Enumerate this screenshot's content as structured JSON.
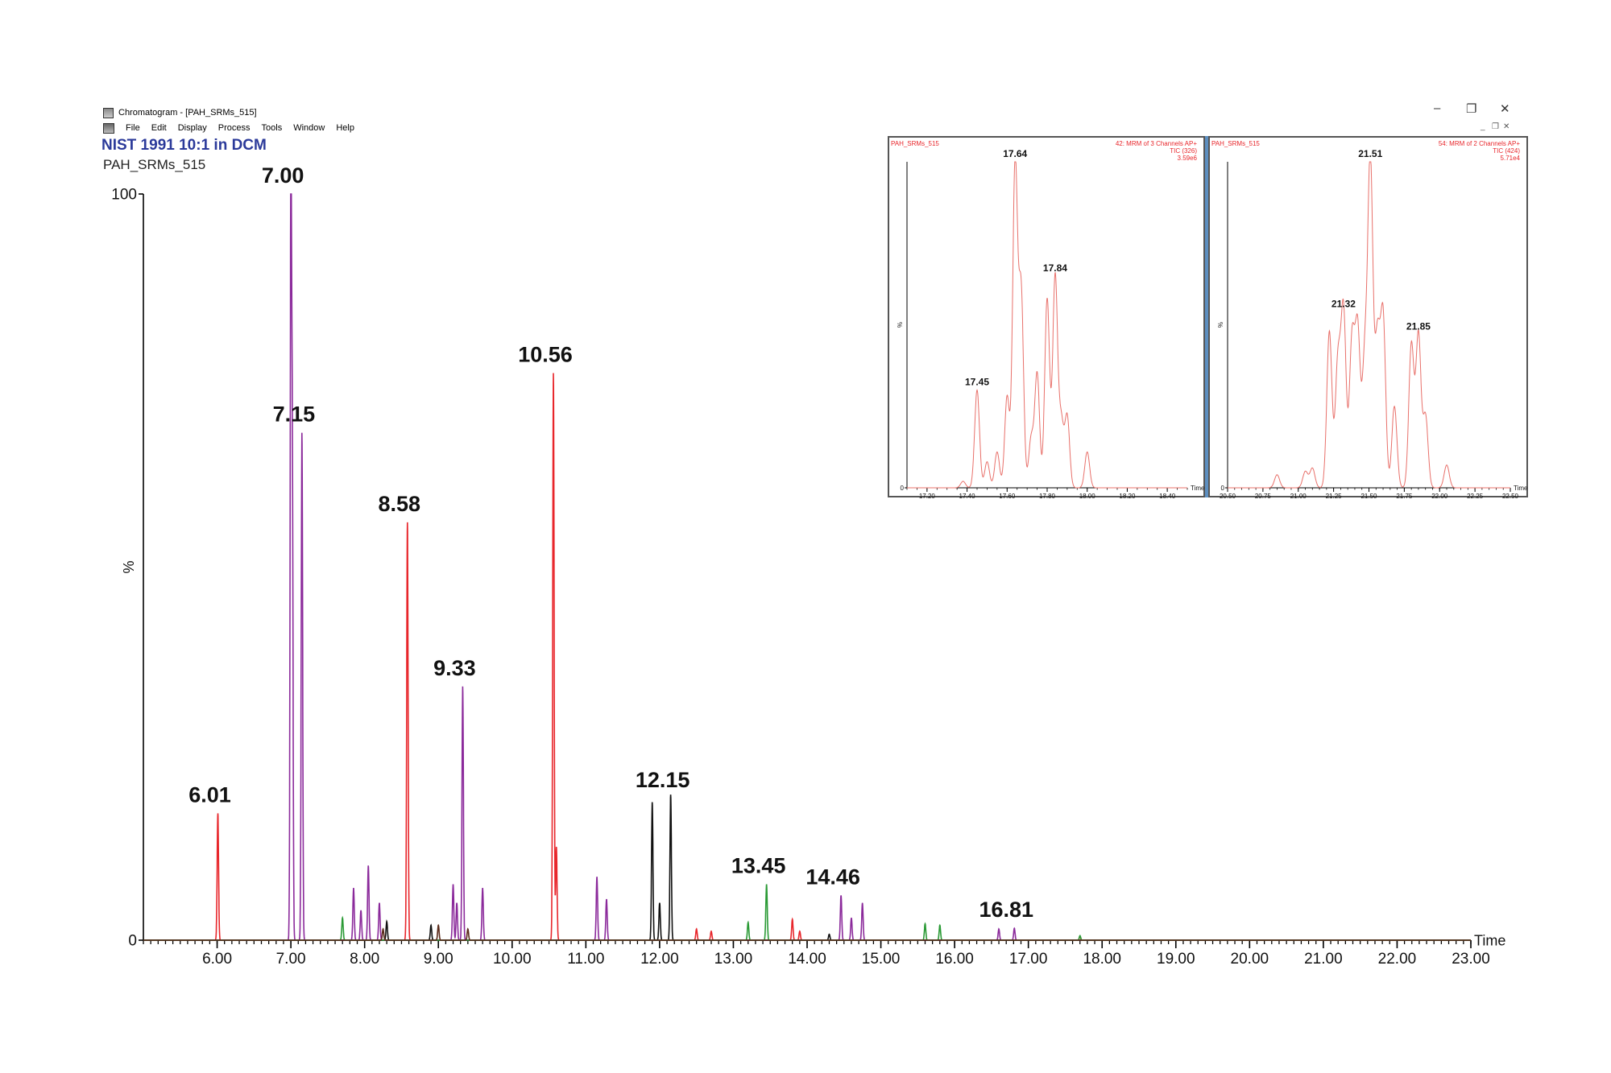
{
  "window": {
    "title": "Chromatogram - [PAH_SRMs_515]",
    "menu": [
      "File",
      "Edit",
      "Display",
      "Process",
      "Tools",
      "Window",
      "Help"
    ],
    "controls": {
      "minimize": "–",
      "restore": "❐",
      "close": "✕"
    },
    "sub_controls": {
      "minimize": "_",
      "restore": "❐",
      "close": "✕"
    }
  },
  "sample": {
    "title": "NIST 1991 10:1 in DCM",
    "name": "PAH_SRMs_515"
  },
  "colors": {
    "red": "#e8262b",
    "purple": "#8b2a9b",
    "black": "#111111",
    "green": "#2a9a35",
    "brown": "#5a2a1a",
    "inset": "#e8706a",
    "title_blue": "#2b3a9a"
  },
  "chart_data": [
    {
      "type": "line",
      "xlabel": "Time",
      "ylabel": "%",
      "xlim": [
        5.0,
        23.0
      ],
      "ylim": [
        0,
        100
      ],
      "x_ticks": [
        "6.00",
        "7.00",
        "8.00",
        "9.00",
        "10.00",
        "11.00",
        "12.00",
        "13.00",
        "14.00",
        "15.00",
        "16.00",
        "17.00",
        "18.00",
        "19.00",
        "20.00",
        "21.00",
        "22.00",
        "23.00"
      ],
      "y_ticks": [
        "0",
        "100"
      ],
      "peak_labels": [
        {
          "x": 6.01,
          "y": 17,
          "label": "6.01"
        },
        {
          "x": 7.0,
          "y": 100,
          "label": "7.00"
        },
        {
          "x": 7.15,
          "y": 68,
          "label": "7.15"
        },
        {
          "x": 8.58,
          "y": 56,
          "label": "8.58"
        },
        {
          "x": 9.33,
          "y": 34,
          "label": "9.33"
        },
        {
          "x": 10.56,
          "y": 76,
          "label": "10.56"
        },
        {
          "x": 12.15,
          "y": 19,
          "label": "12.15"
        },
        {
          "x": 13.45,
          "y": 7.5,
          "label": "13.45"
        },
        {
          "x": 14.46,
          "y": 6,
          "label": "14.46"
        },
        {
          "x": 16.81,
          "y": 1.6,
          "label": "16.81"
        }
      ],
      "series": [
        {
          "color": "red",
          "peaks": [
            [
              6.01,
              17
            ],
            [
              8.58,
              56
            ],
            [
              10.56,
              76
            ],
            [
              10.6,
              12.5
            ],
            [
              12.5,
              1.5
            ],
            [
              12.7,
              1.2
            ],
            [
              13.8,
              2.8
            ],
            [
              13.9,
              1.2
            ],
            [
              17.7,
              0.5
            ]
          ]
        },
        {
          "color": "purple",
          "peaks": [
            [
              7.0,
              100
            ],
            [
              7.02,
              60
            ],
            [
              7.15,
              68
            ],
            [
              7.85,
              7
            ],
            [
              7.95,
              4
            ],
            [
              8.05,
              10
            ],
            [
              8.2,
              5
            ],
            [
              9.2,
              7.5
            ],
            [
              9.25,
              5
            ],
            [
              9.33,
              34
            ],
            [
              9.6,
              7
            ],
            [
              11.15,
              8.5
            ],
            [
              11.28,
              5.5
            ],
            [
              14.46,
              6
            ],
            [
              14.6,
              3
            ],
            [
              14.75,
              5
            ],
            [
              16.6,
              1.5
            ],
            [
              16.81,
              1.6
            ]
          ]
        },
        {
          "color": "black",
          "peaks": [
            [
              8.3,
              2.5
            ],
            [
              8.9,
              2
            ],
            [
              11.9,
              18.5
            ],
            [
              12.0,
              5
            ],
            [
              12.15,
              19.5
            ],
            [
              14.3,
              0.8
            ]
          ]
        },
        {
          "color": "green",
          "peaks": [
            [
              7.7,
              3
            ],
            [
              13.2,
              2.4
            ],
            [
              13.45,
              7.5
            ],
            [
              15.6,
              2.2
            ],
            [
              15.8,
              2
            ],
            [
              17.7,
              0.6
            ]
          ]
        },
        {
          "color": "brown",
          "peaks": [
            [
              8.25,
              1.5
            ],
            [
              9.0,
              2
            ],
            [
              9.4,
              1.5
            ]
          ]
        }
      ]
    },
    {
      "type": "line",
      "header_left": "PAH_SRMs_515",
      "header_right": [
        "42: MRM of 3 Channels AP+",
        "TIC (326)",
        "3.59e6"
      ],
      "xlabel": "Time",
      "ylabel": "%",
      "xlim": [
        17.1,
        18.5
      ],
      "ylim": [
        0,
        100
      ],
      "x_ticks": [
        "17.20",
        "17.40",
        "17.60",
        "17.80",
        "18.00",
        "18.20",
        "18.40"
      ],
      "y_ticks": [
        "0"
      ],
      "peak_labels": [
        {
          "x": 17.45,
          "y": 30,
          "label": "17.45"
        },
        {
          "x": 17.64,
          "y": 100,
          "label": "17.64"
        },
        {
          "x": 17.84,
          "y": 65,
          "label": "17.84"
        }
      ],
      "series": [
        {
          "color": "inset",
          "peaks": [
            [
              17.38,
              2
            ],
            [
              17.45,
              30
            ],
            [
              17.5,
              8
            ],
            [
              17.55,
              11
            ],
            [
              17.6,
              28
            ],
            [
              17.64,
              100
            ],
            [
              17.67,
              60
            ],
            [
              17.72,
              15
            ],
            [
              17.75,
              35
            ],
            [
              17.8,
              58
            ],
            [
              17.84,
              65
            ],
            [
              17.87,
              20
            ],
            [
              17.9,
              22
            ],
            [
              18.0,
              11
            ]
          ]
        }
      ]
    },
    {
      "type": "line",
      "header_left": "PAH_SRMs_515",
      "header_right": [
        "54: MRM of 2 Channels AP+",
        "TIC (424)",
        "5.71e4"
      ],
      "xlabel": "Time",
      "ylabel": "%",
      "xlim": [
        20.5,
        22.5
      ],
      "ylim": [
        0,
        100
      ],
      "x_ticks": [
        "20.50",
        "20.75",
        "21.00",
        "21.25",
        "21.50",
        "21.75",
        "22.00",
        "22.25",
        "22.50"
      ],
      "y_ticks": [
        "0"
      ],
      "peak_labels": [
        {
          "x": 21.32,
          "y": 54,
          "label": "21.32"
        },
        {
          "x": 21.51,
          "y": 100,
          "label": "21.51"
        },
        {
          "x": 21.85,
          "y": 47,
          "label": "21.85"
        }
      ],
      "series": [
        {
          "color": "inset",
          "peaks": [
            [
              20.85,
              4
            ],
            [
              21.05,
              5
            ],
            [
              21.1,
              6
            ],
            [
              21.22,
              48
            ],
            [
              21.28,
              38
            ],
            [
              21.32,
              54
            ],
            [
              21.38,
              45
            ],
            [
              21.42,
              48
            ],
            [
              21.47,
              38
            ],
            [
              21.51,
              100
            ],
            [
              21.56,
              45
            ],
            [
              21.6,
              52
            ],
            [
              21.68,
              25
            ],
            [
              21.8,
              44
            ],
            [
              21.85,
              47
            ],
            [
              21.9,
              22
            ],
            [
              22.05,
              7
            ]
          ]
        }
      ]
    }
  ]
}
